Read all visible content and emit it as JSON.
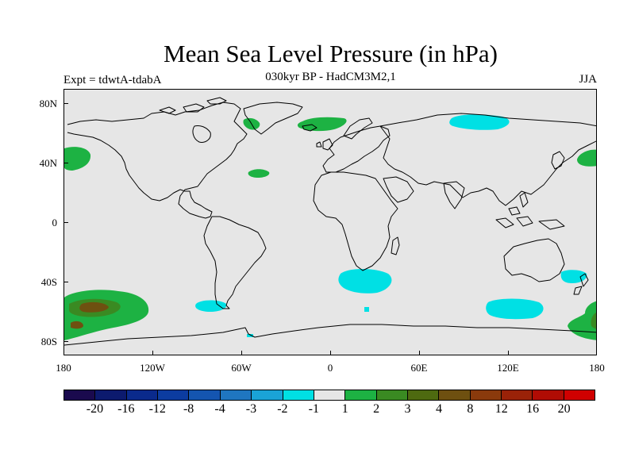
{
  "title": "Mean Sea Level Pressure (in hPa)",
  "subtitle": "030kyr BP - HadCM3M2,1",
  "left_label": "Expt = tdwtA-tdabA",
  "right_label": "JJA",
  "lat_ticks": [
    "80N",
    "40N",
    "0",
    "40S",
    "80S"
  ],
  "lon_ticks": [
    "180",
    "120W",
    "60W",
    "0",
    "60E",
    "120E",
    "180"
  ],
  "colorbar": {
    "labels": [
      "-20",
      "-16",
      "-12",
      "-8",
      "-4",
      "-3",
      "-2",
      "-1",
      "1",
      "2",
      "3",
      "4",
      "8",
      "12",
      "16",
      "20"
    ],
    "colors": [
      "#1a0a4e",
      "#0c1a6e",
      "#0a2a8c",
      "#0c3ca0",
      "#1455b0",
      "#1f76c0",
      "#1aa3d6",
      "#00e0e4",
      "#e6e6e6",
      "#1db243",
      "#3a8a22",
      "#4e6a10",
      "#6e5010",
      "#8a3a0c",
      "#9a2208",
      "#b00c04",
      "#d00000"
    ]
  },
  "map": {
    "ocean_color": "#e6e6e6",
    "coast_color": "#000000"
  }
}
